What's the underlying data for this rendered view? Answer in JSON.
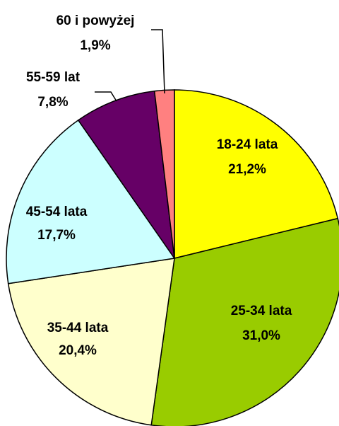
{
  "chart_data": {
    "type": "pie",
    "categories": [
      "18-24 lata",
      "25-34 lata",
      "35-44 lata",
      "45-54 lata",
      "55-59 lat",
      "60 i powyżej"
    ],
    "values": [
      21.2,
      31.0,
      20.4,
      17.7,
      7.8,
      1.9
    ],
    "value_labels": [
      "21,2%",
      "31,0%",
      "20,4%",
      "17,7%",
      "7,8%",
      "1,9%"
    ],
    "colors": [
      "#ffff00",
      "#99cc00",
      "#ffffcc",
      "#ccffff",
      "#660066",
      "#ff8080"
    ]
  }
}
